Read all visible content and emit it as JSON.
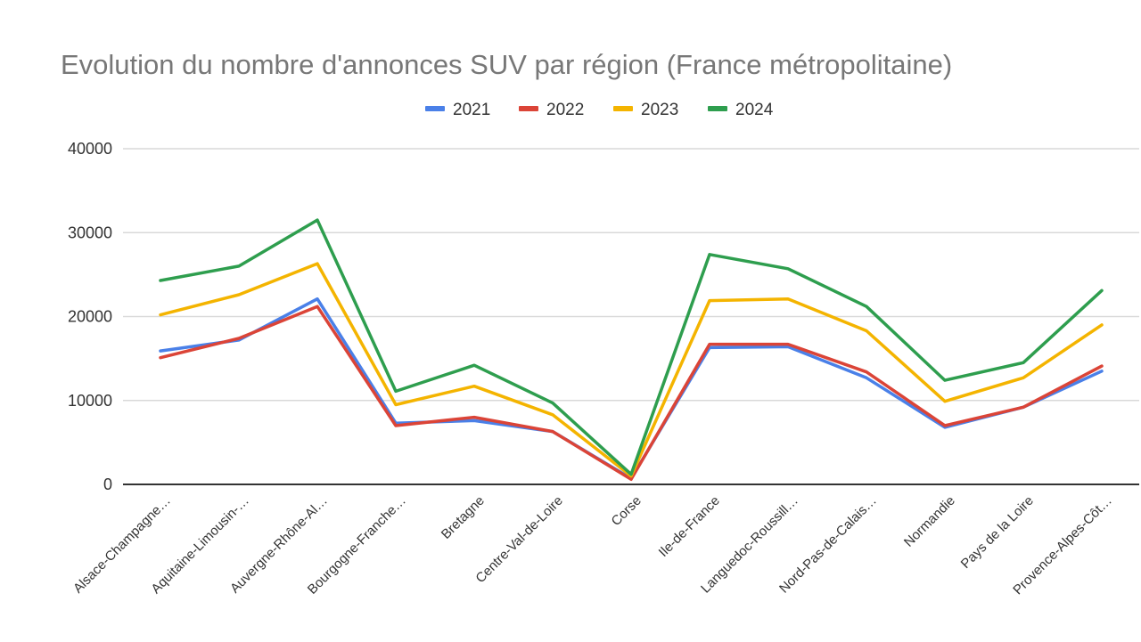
{
  "chart_data": {
    "type": "line",
    "title": "Evolution du nombre d'annonces SUV par région (France métropolitaine)",
    "xlabel": "",
    "ylabel": "",
    "ylim": [
      0,
      40000
    ],
    "yticks": [
      "0",
      "10000",
      "20000",
      "30000",
      "40000"
    ],
    "grid": true,
    "legend_position": "top",
    "categories": [
      "Alsace-Champagne…",
      "Aquitaine-Limousin-…",
      "Auvergne-Rhône-Al…",
      "Bourgogne-Franche…",
      "Bretagne",
      "Centre-Val-de-Loire",
      "Corse",
      "Ile-de-France",
      "Languedoc-Roussill…",
      "Nord-Pas-de-Calais…",
      "Normandie",
      "Pays de la Loire",
      "Provence-Alpes-Côt…"
    ],
    "series": [
      {
        "name": "2021",
        "color": "#4a80e8",
        "values": [
          15900,
          17200,
          22100,
          7300,
          7600,
          6300,
          700,
          16300,
          16400,
          12700,
          6800,
          9200,
          13500
        ]
      },
      {
        "name": "2022",
        "color": "#db4437",
        "values": [
          15100,
          17400,
          21200,
          7000,
          8000,
          6300,
          600,
          16700,
          16700,
          13400,
          7000,
          9200,
          14100
        ]
      },
      {
        "name": "2023",
        "color": "#f4b400",
        "values": [
          20200,
          22600,
          26300,
          9500,
          11700,
          8300,
          1000,
          21900,
          22100,
          18300,
          9900,
          12700,
          19000
        ]
      },
      {
        "name": "2024",
        "color": "#2e9e4e",
        "values": [
          24300,
          26000,
          31500,
          11100,
          14200,
          9700,
          1200,
          27400,
          25700,
          21200,
          12400,
          14500,
          23100
        ]
      }
    ]
  }
}
